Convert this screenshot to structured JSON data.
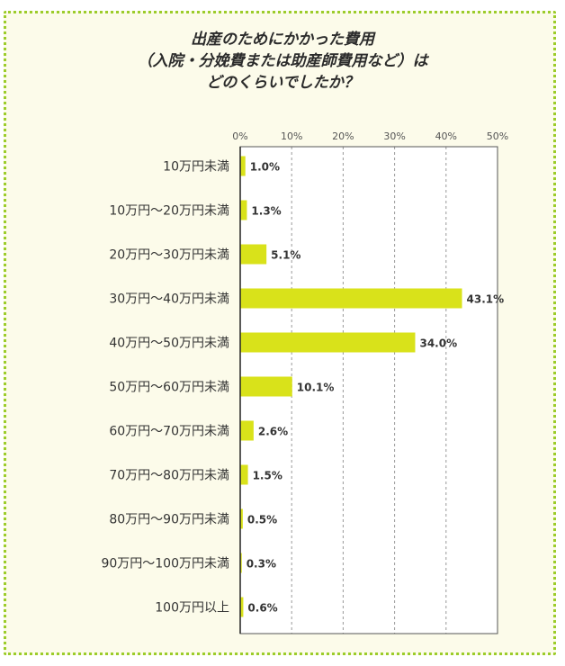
{
  "title": {
    "line1": "出産のためにかかった費用",
    "line2": "（入院・分娩費または助産師費用など）は",
    "line3": "どのくらいでしたか？"
  },
  "colors": {
    "bar": "#d9e21a",
    "border": "#9ccc2a",
    "background": "#fcfbea"
  },
  "chart_data": {
    "type": "bar",
    "orientation": "horizontal",
    "categories": [
      "10万円未満",
      "10万円〜20万円未満",
      "20万円〜30万円未満",
      "30万円〜40万円未満",
      "40万円〜50万円未満",
      "50万円〜60万円未満",
      "60万円〜70万円未満",
      "70万円〜80万円未満",
      "80万円〜90万円未満",
      "90万円〜100万円未満",
      "100万円以上"
    ],
    "values": [
      1.0,
      1.3,
      5.1,
      43.1,
      34.0,
      10.1,
      2.6,
      1.5,
      0.5,
      0.3,
      0.6
    ],
    "value_labels": [
      "1.0%",
      "1.3%",
      "5.1%",
      "43.1%",
      "34.0%",
      "10.1%",
      "2.6%",
      "1.5%",
      "0.5%",
      "0.3%",
      "0.6%"
    ],
    "xlim": [
      0,
      50
    ],
    "xticks": [
      "0%",
      "10%",
      "20%",
      "30%",
      "40%",
      "50%"
    ],
    "grid": true,
    "xaxis_position": "top"
  }
}
